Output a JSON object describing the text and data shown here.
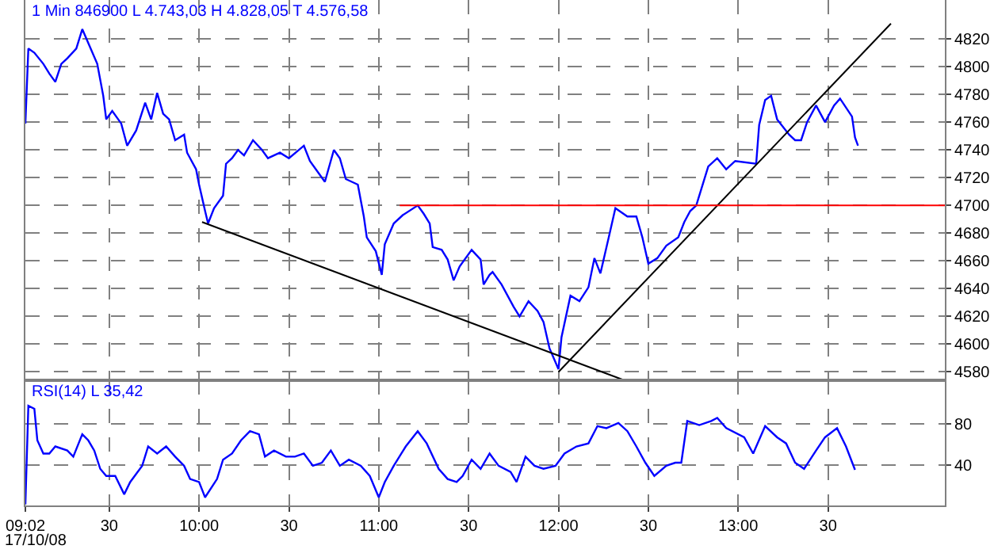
{
  "chart_data": [
    {
      "type": "line",
      "title": "1 Min 846900 L 4.743,03 H 4.828,05 T 4.576,58",
      "xlim": [
        "--10-17T09:02",
        "--10-17T14:09"
      ],
      "ylim": [
        4574,
        4848
      ],
      "yticks": [
        4580,
        4600,
        4620,
        4640,
        4660,
        4680,
        4700,
        4720,
        4740,
        4760,
        4780,
        4800,
        4820
      ],
      "xticks": [
        {
          "value": "--10-17T09:30",
          "label": "30"
        },
        {
          "value": "--10-17T10:00",
          "label": "10:00"
        },
        {
          "value": "--10-17T10:30",
          "label": "30"
        },
        {
          "value": "--10-17T11:00",
          "label": "11:00"
        },
        {
          "value": "--10-17T11:30",
          "label": "30"
        },
        {
          "value": "--10-17T12:00",
          "label": "12:00"
        },
        {
          "value": "--10-17T12:30",
          "label": "30"
        },
        {
          "value": "--10-17T13:00",
          "label": "13:00"
        },
        {
          "value": "--10-17T13:30",
          "label": "30"
        }
      ],
      "tick_labels": "y",
      "grid": true,
      "line_style": "solid",
      "marker": "none",
      "series": [
        {
          "color": "#0000ff",
          "x": [
            "--10-17T09:02",
            "--10-17T09:03",
            "--10-17T09:05",
            "--10-17T09:08",
            "--10-17T09:10",
            "--10-17T09:12",
            "--10-17T09:14",
            "--10-17T09:16",
            "--10-17T09:19",
            "--10-17T09:21",
            "--10-17T09:23",
            "--10-17T09:26",
            "--10-17T09:28",
            "--10-17T09:29",
            "--10-17T09:31",
            "--10-17T09:34",
            "--10-17T09:36",
            "--10-17T09:39",
            "--10-17T09:42",
            "--10-17T09:44",
            "--10-17T09:46",
            "--10-17T09:48",
            "--10-17T09:50",
            "--10-17T09:52",
            "--10-17T09:55",
            "--10-17T09:56",
            "--10-17T09:59",
            "--10-17T10:00",
            "--10-17T10:02",
            "--10-17T10:03",
            "--10-17T10:05",
            "--10-17T10:08",
            "--10-17T10:09",
            "--10-17T10:11",
            "--10-17T10:13",
            "--10-17T10:15",
            "--10-17T10:18",
            "--10-17T10:21",
            "--10-17T10:23",
            "--10-17T10:27",
            "--10-17T10:30",
            "--10-17T10:35",
            "--10-17T10:37",
            "--10-17T10:40",
            "--10-17T10:42",
            "--10-17T10:45",
            "--10-17T10:47",
            "--10-17T10:49",
            "--10-17T10:53",
            "--10-17T10:55",
            "--10-17T10:56",
            "--10-17T10:59",
            "--10-17T11:01",
            "--10-17T11:02",
            "--10-17T11:05",
            "--10-17T11:08",
            "--10-17T11:13",
            "--10-17T11:15",
            "--10-17T11:17",
            "--10-17T11:18",
            "--10-17T11:21",
            "--10-17T11:23",
            "--10-17T11:25",
            "--10-17T11:27",
            "--10-17T11:31",
            "--10-17T11:34",
            "--10-17T11:35",
            "--10-17T11:37",
            "--10-17T11:38",
            "--10-17T11:41",
            "--10-17T11:45",
            "--10-17T11:47",
            "--10-17T11:50",
            "--10-17T11:53",
            "--10-17T11:55",
            "--10-17T11:57",
            "--10-17T12:00",
            "--10-17T12:01",
            "--10-17T12:04",
            "--10-17T12:07",
            "--10-17T12:10",
            "--10-17T12:12",
            "--10-17T12:14",
            "--10-17T12:17",
            "--10-17T12:19",
            "--10-17T12:23",
            "--10-17T12:26",
            "--10-17T12:28",
            "--10-17T12:30",
            "--10-17T12:33",
            "--10-17T12:36",
            "--10-17T12:40",
            "--10-17T12:42",
            "--10-17T12:44",
            "--10-17T12:46",
            "--10-17T12:50",
            "--10-17T12:53",
            "--10-17T12:56",
            "--10-17T12:59",
            "--10-17T13:06",
            "--10-17T13:07",
            "--10-17T13:09",
            "--10-17T13:11",
            "--10-17T13:13",
            "--10-17T13:17",
            "--10-17T13:19",
            "--10-17T13:21",
            "--10-17T13:23",
            "--10-17T13:26",
            "--10-17T13:29",
            "--10-17T13:32",
            "--10-17T13:34",
            "--10-17T13:38",
            "--10-17T13:39",
            "--10-17T13:40"
          ],
          "values": [
            4759,
            4813,
            4810,
            4802,
            4795,
            4789,
            4802,
            4806,
            4813,
            4827,
            4817,
            4802,
            4779,
            4762,
            4768,
            4759,
            4743,
            4754,
            4774,
            4762,
            4781,
            4766,
            4762,
            4747,
            4751,
            4738,
            4726,
            4715,
            4696,
            4687,
            4698,
            4707,
            4730,
            4734,
            4740,
            4736,
            4747,
            4740,
            4734,
            4738,
            4734,
            4743,
            4732,
            4723,
            4717,
            4740,
            4734,
            4719,
            4715,
            4692,
            4677,
            4667,
            4650,
            4672,
            4687,
            4693,
            4700,
            4694,
            4687,
            4670,
            4668,
            4661,
            4646,
            4656,
            4668,
            4661,
            4643,
            4650,
            4652,
            4643,
            4627,
            4620,
            4631,
            4624,
            4616,
            4597,
            4582,
            4605,
            4635,
            4631,
            4641,
            4662,
            4651,
            4679,
            4698,
            4692,
            4692,
            4677,
            4658,
            4662,
            4671,
            4677,
            4688,
            4696,
            4700,
            4728,
            4734,
            4726,
            4732,
            4730,
            4758,
            4776,
            4779,
            4762,
            4751,
            4747,
            4747,
            4760,
            4772,
            4760,
            4772,
            4777,
            4764,
            4749,
            4743
          ]
        },
        {
          "color": "#000000",
          "x": [
            "--10-17T10:01",
            "--10-17T12:22"
          ],
          "values": [
            4688,
            4574
          ]
        },
        {
          "color": "#000000",
          "x": [
            "--10-17T12:00",
            "--10-17T13:51"
          ],
          "values": [
            4580,
            4831
          ]
        },
        {
          "color": "#ff0000",
          "x": [
            "--10-17T11:07",
            "--10-17T14:09"
          ],
          "values": [
            4700,
            4700
          ]
        }
      ]
    },
    {
      "type": "line",
      "title": "RSI(14) L 35,42",
      "annotations": [
        "17/10/08"
      ],
      "xlim": [
        "--10-17T09:02",
        "--10-17T14:09"
      ],
      "ylim": [
        0,
        123
      ],
      "yticks": [
        40,
        80
      ],
      "xticks": [
        {
          "value": "--10-17T09:02",
          "label": "09:02"
        },
        {
          "value": "--10-17T09:30",
          "label": "30"
        },
        {
          "value": "--10-17T10:00",
          "label": "10:00"
        },
        {
          "value": "--10-17T10:30",
          "label": "30"
        },
        {
          "value": "--10-17T11:00",
          "label": "11:00"
        },
        {
          "value": "--10-17T11:30",
          "label": "30"
        },
        {
          "value": "--10-17T12:00",
          "label": "12:00"
        },
        {
          "value": "--10-17T12:30",
          "label": "30"
        },
        {
          "value": "--10-17T13:00",
          "label": "13:00"
        },
        {
          "value": "--10-17T13:30",
          "label": "30"
        }
      ],
      "grid": true,
      "line_style": "solid",
      "marker": "none",
      "series": [
        {
          "color": "#0000ff",
          "x": [
            "--10-17T09:02",
            "--10-17T09:03",
            "--10-17T09:05",
            "--10-17T09:06",
            "--10-17T09:08",
            "--10-17T09:10",
            "--10-17T09:12",
            "--10-17T09:16",
            "--10-17T09:18",
            "--10-17T09:21",
            "--10-17T09:23",
            "--10-17T09:25",
            "--10-17T09:27",
            "--10-17T09:29",
            "--10-17T09:32",
            "--10-17T09:35",
            "--10-17T09:37",
            "--10-17T09:41",
            "--10-17T09:43",
            "--10-17T09:46",
            "--10-17T09:49",
            "--10-17T09:52",
            "--10-17T09:55",
            "--10-17T09:57",
            "--10-17T10:00",
            "--10-17T10:02",
            "--10-17T10:06",
            "--10-17T10:08",
            "--10-17T10:11",
            "--10-17T10:14",
            "--10-17T10:17",
            "--10-17T10:20",
            "--10-17T10:22",
            "--10-17T10:25",
            "--10-17T10:29",
            "--10-17T10:32",
            "--10-17T10:35",
            "--10-17T10:38",
            "--10-17T10:41",
            "--10-17T10:44",
            "--10-17T10:47",
            "--10-17T10:50",
            "--10-17T10:54",
            "--10-17T10:57",
            "--10-17T11:00",
            "--10-17T11:02",
            "--10-17T11:05",
            "--10-17T11:09",
            "--10-17T11:13",
            "--10-17T11:16",
            "--10-17T11:20",
            "--10-17T11:23",
            "--10-17T11:26",
            "--10-17T11:28",
            "--10-17T11:31",
            "--10-17T11:34",
            "--10-17T11:37",
            "--10-17T11:40",
            "--10-17T11:44",
            "--10-17T11:46",
            "--10-17T11:49",
            "--10-17T11:52",
            "--10-17T11:55",
            "--10-17T11:59",
            "--10-17T12:02",
            "--10-17T12:06",
            "--10-17T12:10",
            "--10-17T12:13",
            "--10-17T12:16",
            "--10-17T12:20",
            "--10-17T12:23",
            "--10-17T12:26",
            "--10-17T12:29",
            "--10-17T12:32",
            "--10-17T12:36",
            "--10-17T12:39",
            "--10-17T12:41",
            "--10-17T12:43",
            "--10-17T12:47",
            "--10-17T12:51",
            "--10-17T12:53",
            "--10-17T12:56",
            "--10-17T13:02",
            "--10-17T13:05",
            "--10-17T13:09",
            "--10-17T13:13",
            "--10-17T13:16",
            "--10-17T13:19",
            "--10-17T13:22",
            "--10-17T13:26",
            "--10-17T13:29",
            "--10-17T13:33",
            "--10-17T13:36",
            "--10-17T13:39"
          ],
          "values": [
            1,
            98,
            95,
            64,
            51,
            51,
            58,
            54,
            48,
            70,
            64,
            54,
            36,
            29,
            29,
            11,
            23,
            39,
            58,
            51,
            58,
            48,
            39,
            26,
            23,
            8,
            26,
            45,
            51,
            64,
            73,
            70,
            48,
            54,
            48,
            48,
            51,
            39,
            42,
            54,
            39,
            45,
            39,
            29,
            8,
            23,
            39,
            58,
            73,
            61,
            36,
            26,
            23,
            29,
            45,
            36,
            51,
            39,
            33,
            23,
            48,
            39,
            36,
            39,
            51,
            58,
            61,
            78,
            76,
            81,
            73,
            58,
            42,
            29,
            39,
            42,
            42,
            83,
            79,
            83,
            86,
            76,
            67,
            51,
            78,
            67,
            61,
            42,
            36,
            54,
            67,
            76,
            58,
            35
          ]
        }
      ]
    }
  ]
}
